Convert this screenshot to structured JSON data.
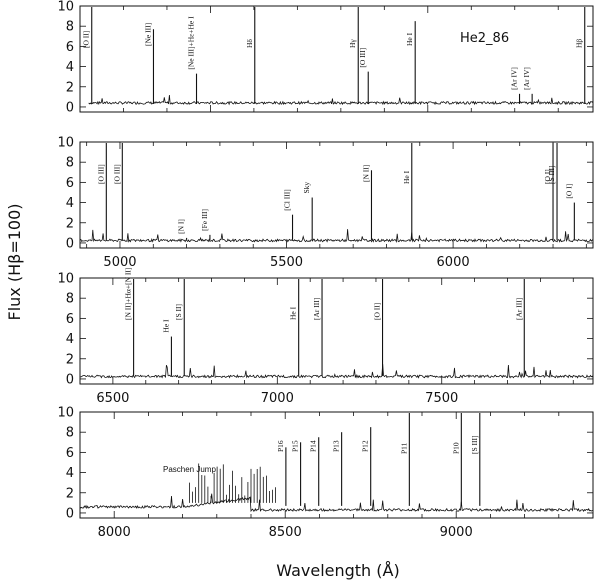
{
  "figure": {
    "object_label": "He2_86",
    "ylabel": "Flux (Hβ=100)",
    "xlabel": "Wavelength (Å)",
    "paschen_label": "Paschen Jump"
  },
  "chart_data": [
    {
      "type": "line",
      "xlim": [
        3700,
        4880
      ],
      "ylim": [
        -0.5,
        10
      ],
      "xticklabels": [],
      "yticks": [
        0,
        2,
        4,
        6,
        8,
        10
      ],
      "grid": false,
      "lines": [
        {
          "label": "[O II]",
          "x": 3727,
          "y": 10
        },
        {
          "label": "[Ne III]",
          "x": 3869,
          "y": 7.7
        },
        {
          "label": "[Ne III]+Hε+He I",
          "x": 3968,
          "y": 3.3
        },
        {
          "label": "Hδ",
          "x": 4102,
          "y": 10
        },
        {
          "label": "Hγ",
          "x": 4340,
          "y": 10
        },
        {
          "label": "[O III]",
          "x": 4363,
          "y": 3.5
        },
        {
          "label": "He I",
          "x": 4471,
          "y": 8.5
        },
        {
          "label": "[Ar IV]",
          "x": 4711,
          "y": 1.3
        },
        {
          "label": "[Ar IV]",
          "x": 4740,
          "y": 1.3
        },
        {
          "label": "Hβ",
          "x": 4861,
          "y": 10
        }
      ]
    },
    {
      "type": "line",
      "xlim": [
        4880,
        6420
      ],
      "ylim": [
        -0.5,
        10
      ],
      "xticks": [
        5000,
        5500,
        6000
      ],
      "xticklabels": [
        "5000",
        "5500",
        "6000"
      ],
      "yticks": [
        0,
        2,
        4,
        6,
        8,
        10
      ],
      "grid": false,
      "lines": [
        {
          "label": "[O III]",
          "x": 4959,
          "y": 10
        },
        {
          "label": "[O III]",
          "x": 5007,
          "y": 10
        },
        {
          "label": "[N I]",
          "x": 5200,
          "y": 0.5
        },
        {
          "label": "[Fe III]",
          "x": 5270,
          "y": 0.8
        },
        {
          "label": "[Cl III]",
          "x": 5518,
          "y": 2.8
        },
        {
          "label": "Sky",
          "x": 5577,
          "y": 4.5
        },
        {
          "label": "[N II]",
          "x": 5755,
          "y": 7.2
        },
        {
          "label": "He I",
          "x": 5876,
          "y": 10
        },
        {
          "label": "[O I]",
          "x": 6300,
          "y": 10
        },
        {
          "label": "[S III]",
          "x": 6312,
          "y": 10
        },
        {
          "label": "[O I]",
          "x": 6364,
          "y": 4
        }
      ]
    },
    {
      "type": "line",
      "xlim": [
        6400,
        7960
      ],
      "ylim": [
        -0.5,
        10
      ],
      "xticks": [
        6500,
        7000,
        7500
      ],
      "xticklabels": [
        "6500",
        "7000",
        "7500"
      ],
      "yticks": [
        0,
        2,
        4,
        6,
        8,
        10
      ],
      "grid": false,
      "lines": [
        {
          "label": "[N II]+Hα+[N II]",
          "x": 6563,
          "y": 10
        },
        {
          "label": "He I",
          "x": 6678,
          "y": 4.2
        },
        {
          "label": "[S II]",
          "x": 6717,
          "y": 10
        },
        {
          "label": "He I",
          "x": 7065,
          "y": 10
        },
        {
          "label": "[Ar III]",
          "x": 7136,
          "y": 10
        },
        {
          "label": "[O II]",
          "x": 7320,
          "y": 10
        },
        {
          "label": "[Ar III]",
          "x": 7751,
          "y": 10
        }
      ]
    },
    {
      "type": "line",
      "xlim": [
        7900,
        9400
      ],
      "ylim": [
        -0.5,
        10
      ],
      "xticks": [
        8000,
        8500,
        9000
      ],
      "xticklabels": [
        "8000",
        "8500",
        "9000"
      ],
      "yticks": [
        0,
        2,
        4,
        6,
        8,
        10
      ],
      "grid": false,
      "lines": [
        {
          "label": "P16",
          "x": 8502,
          "y": 6.5
        },
        {
          "label": "P15",
          "x": 8545,
          "y": 7
        },
        {
          "label": "P14",
          "x": 8598,
          "y": 7.5
        },
        {
          "label": "P13",
          "x": 8665,
          "y": 8
        },
        {
          "label": "P12",
          "x": 8750,
          "y": 8.5
        },
        {
          "label": "P11",
          "x": 8863,
          "y": 10
        },
        {
          "label": "P10",
          "x": 9015,
          "y": 10
        },
        {
          "label": "[S III]",
          "x": 9069,
          "y": 10
        }
      ]
    }
  ]
}
